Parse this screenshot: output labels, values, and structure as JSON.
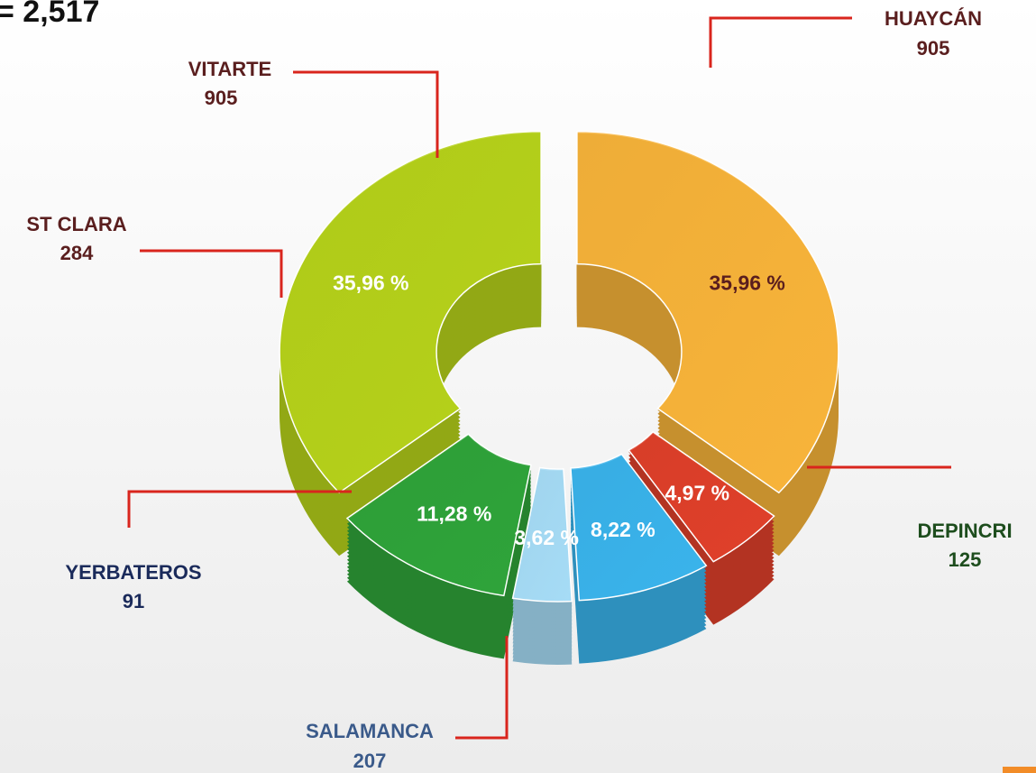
{
  "chart_data": {
    "type": "pie",
    "title": "= 2,517",
    "categories": [
      "HUAYCÁN",
      "DEPINCRI",
      "SALAMANCA",
      "YERBATEROS",
      "ST CLARA",
      "VITARTE"
    ],
    "values": [
      905,
      125,
      207,
      91,
      284,
      905
    ],
    "percentages": [
      35.96,
      4.97,
      8.22,
      3.62,
      11.28,
      35.96
    ],
    "percentage_labels": [
      "35,96 %",
      "4,97 %",
      "8,22 %",
      "3,62 %",
      "11,28 %",
      "35,96 %"
    ],
    "colors": [
      "#f8b43a",
      "#e0402a",
      "#3ab4ec",
      "#a6dcf6",
      "#2fa43a",
      "#b6d21a"
    ]
  }
}
